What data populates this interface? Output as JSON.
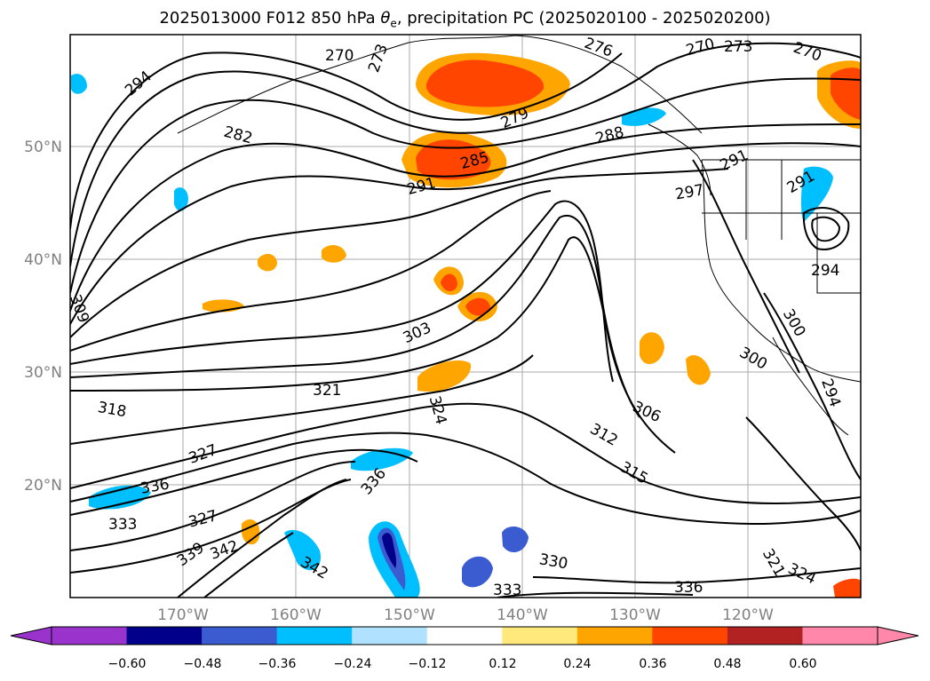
{
  "figure": {
    "title_prefix": "2025013000 F012 850 hPa ",
    "title_symbol": "θ",
    "title_symbol_sub": "e",
    "title_suffix": ", precipitation PC (2025020100 - 2025020200)"
  },
  "axes": {
    "lat_labels": [
      "50°N",
      "40°N",
      "30°N",
      "20°N"
    ],
    "lon_labels": [
      "170°W",
      "160°W",
      "150°W",
      "140°W",
      "130°W",
      "120°W"
    ]
  },
  "contour_labels": [
    "294",
    "282",
    "270",
    "273",
    "276",
    "270",
    "273",
    "270",
    "279",
    "288",
    "285",
    "291",
    "291",
    "297",
    "291",
    "294",
    "309",
    "303",
    "300",
    "300",
    "294",
    "321",
    "324",
    "318",
    "306",
    "312",
    "315",
    "327",
    "336",
    "333",
    "327",
    "339",
    "342",
    "342",
    "336",
    "330",
    "333",
    "336",
    "321",
    "324"
  ],
  "colorbar": {
    "ticks": [
      "−0.60",
      "−0.48",
      "−0.36",
      "−0.24",
      "−0.12",
      "0.12",
      "0.24",
      "0.36",
      "0.48",
      "0.60"
    ],
    "colors": [
      "#9933cc",
      "#00008b",
      "#3b5bd1",
      "#00bfff",
      "#b0e2ff",
      "#ffffff",
      "#ffe87c",
      "#ffa500",
      "#ff4500",
      "#b22222",
      "#ff88aa",
      "#ff88aa"
    ]
  }
}
